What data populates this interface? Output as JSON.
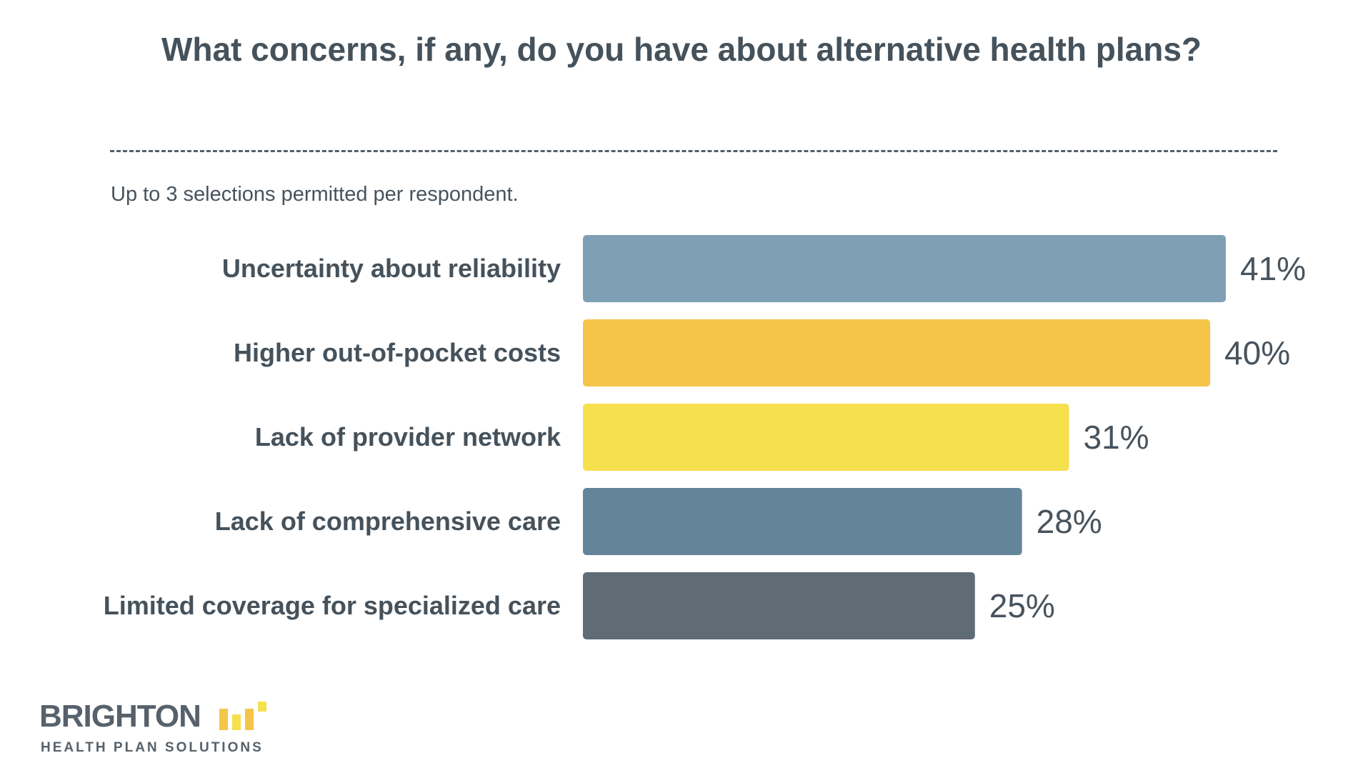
{
  "chart_data": {
    "type": "bar",
    "orientation": "horizontal",
    "title": "What concerns, if any, do you have about alternative health plans?",
    "subtitle": "Up to 3 selections permitted per respondent.",
    "categories": [
      "Uncertainty about reliability",
      "Higher out-of-pocket costs",
      "Lack of provider network",
      "Lack of comprehensive care",
      "Limited coverage for specialized care"
    ],
    "values": [
      41,
      40,
      31,
      28,
      25
    ],
    "value_labels": [
      "41%",
      "40%",
      "31%",
      "28%",
      "25%"
    ],
    "bar_colors": [
      "#7fa0b4",
      "#f5c549",
      "#f5e04e",
      "#64849a",
      "#5f6b75"
    ],
    "xlim": [
      0,
      41
    ],
    "grid": false,
    "legend": "none"
  },
  "brand": {
    "name": "BRIGHTON",
    "tagline": "HEALTH PLAN SOLUTIONS",
    "mark_colors": [
      "#f5c549",
      "#f5e04e",
      "#f5c549",
      "#f5e04e"
    ]
  }
}
